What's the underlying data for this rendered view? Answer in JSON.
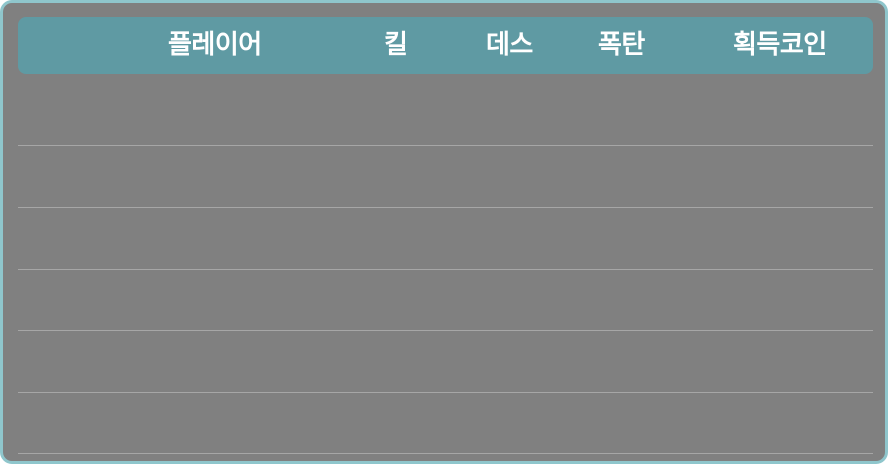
{
  "scoreboard": {
    "columns": [
      {
        "key": "player",
        "label": "플레이어"
      },
      {
        "key": "kill",
        "label": "킬"
      },
      {
        "key": "death",
        "label": "데스"
      },
      {
        "key": "bomb",
        "label": "폭탄"
      },
      {
        "key": "coin",
        "label": "획득코인"
      }
    ],
    "rows": [
      {
        "player": "",
        "kill": "",
        "death": "",
        "bomb": "",
        "coin": ""
      },
      {
        "player": "",
        "kill": "",
        "death": "",
        "bomb": "",
        "coin": ""
      },
      {
        "player": "",
        "kill": "",
        "death": "",
        "bomb": "",
        "coin": ""
      },
      {
        "player": "",
        "kill": "",
        "death": "",
        "bomb": "",
        "coin": ""
      },
      {
        "player": "",
        "kill": "",
        "death": "",
        "bomb": "",
        "coin": ""
      },
      {
        "player": "",
        "kill": "",
        "death": "",
        "bomb": "",
        "coin": ""
      }
    ]
  },
  "colors": {
    "panel_background": "#808080",
    "panel_border": "#8fc6cc",
    "header_background": "#5f9aa3",
    "header_text": "#ffffff",
    "row_divider": "#a6a6a6"
  }
}
